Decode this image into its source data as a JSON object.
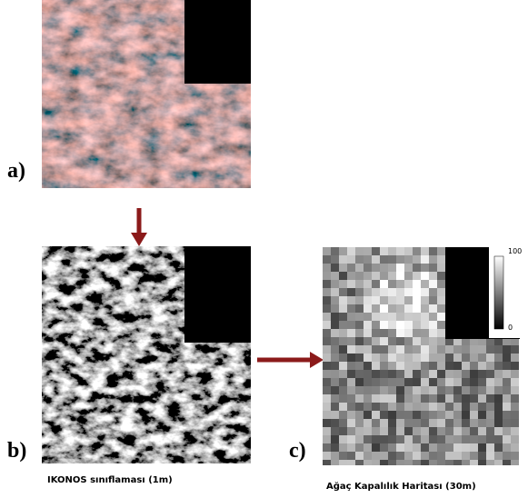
{
  "panels": [
    {
      "label": "a)"
    },
    {
      "label": "b)",
      "caption": "IKONOS sınıflaması (1m)"
    },
    {
      "label": "c)",
      "caption": "Ağaç Kapalılık Haritası (30m)",
      "colorbar": {
        "max": "100",
        "min": "0"
      }
    }
  ]
}
